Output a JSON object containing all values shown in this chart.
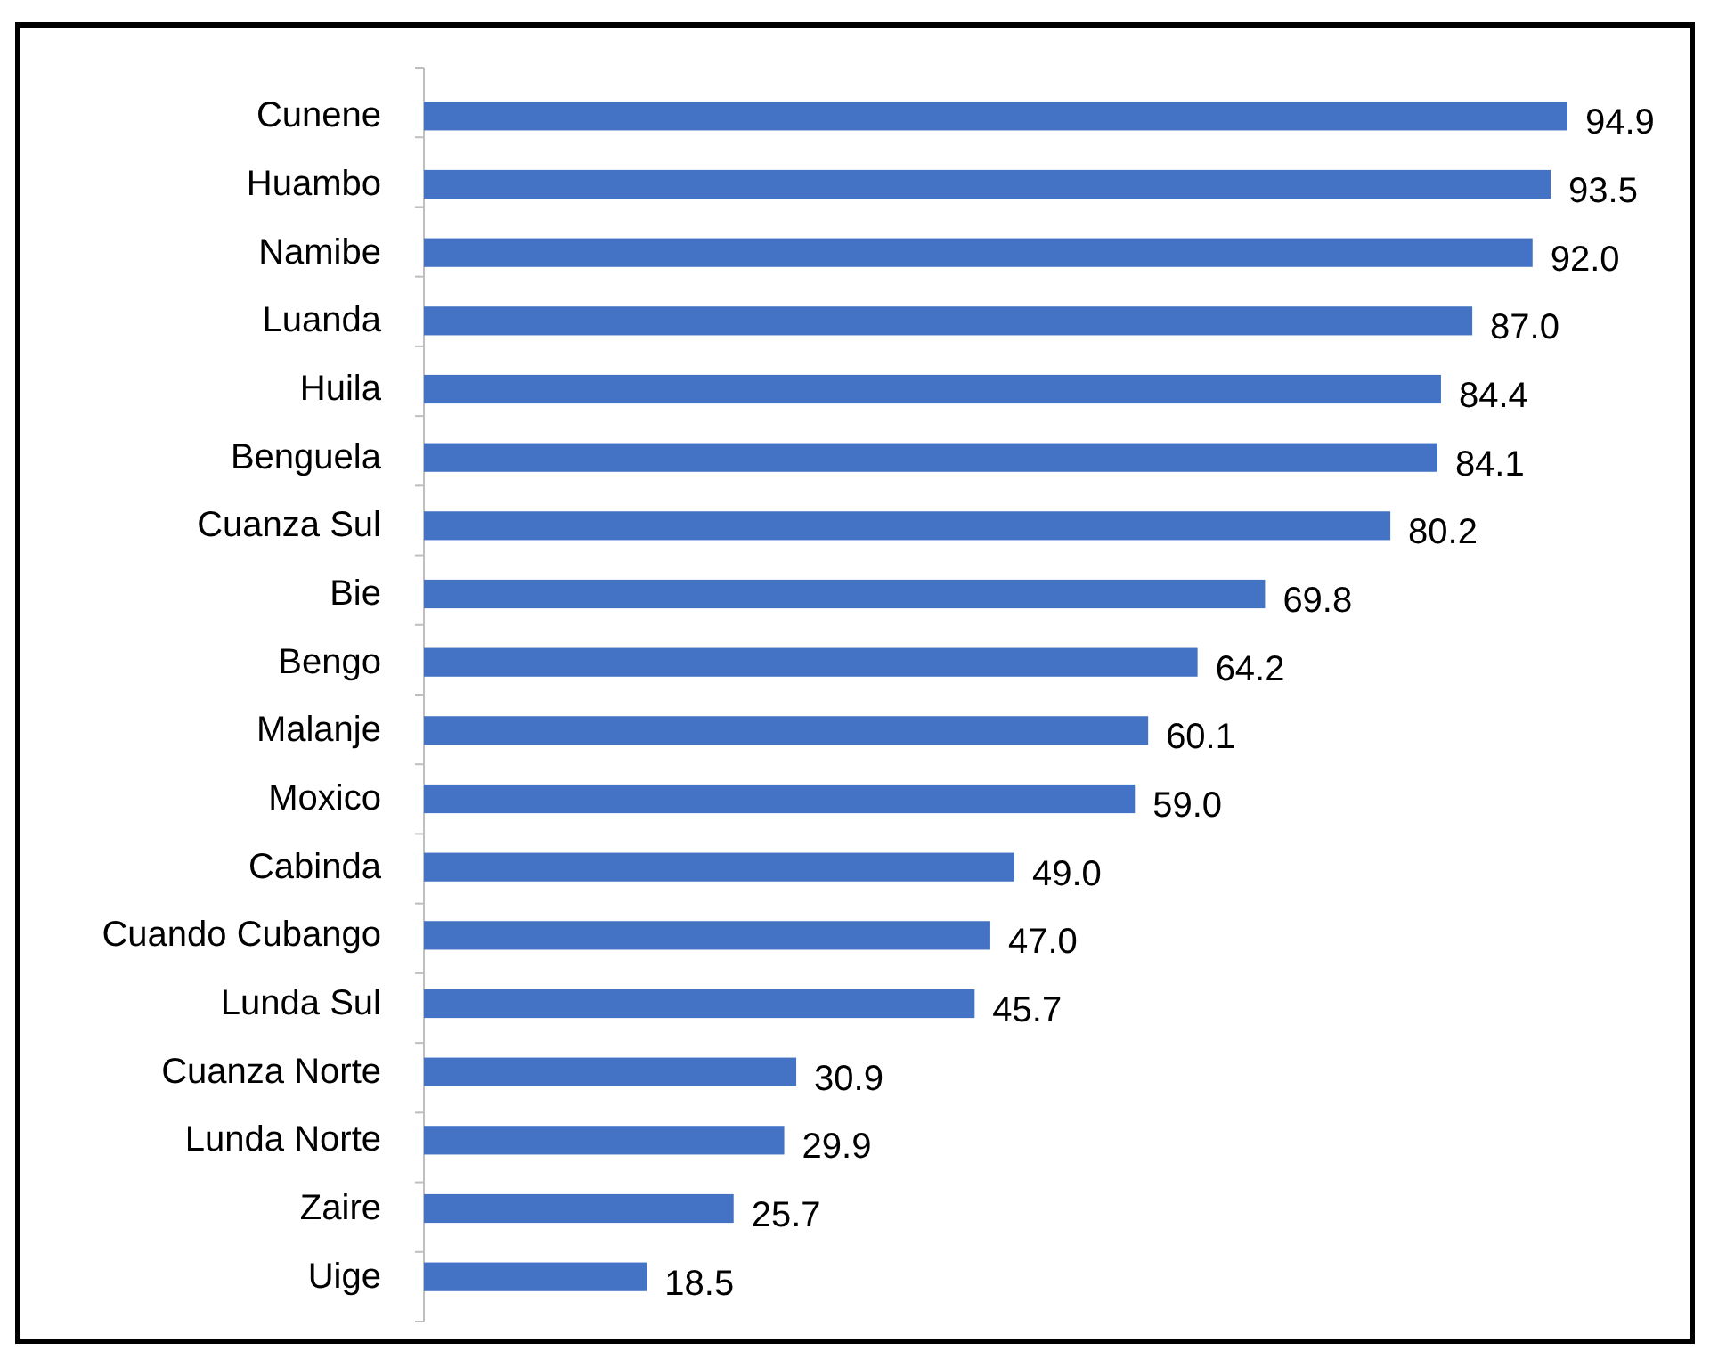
{
  "chart_data": {
    "type": "bar",
    "orientation": "horizontal",
    "value_labels": [
      "94.9",
      "93.5",
      "92.0",
      "87.0",
      "84.4",
      "84.1",
      "80.2",
      "69.8",
      "64.2",
      "60.1",
      "59.0",
      "49.0",
      "47.0",
      "45.7",
      "30.9",
      "29.9",
      "25.7",
      "18.5"
    ],
    "color": "#4472c4",
    "categories": [
      "Cunene",
      "Huambo",
      "Namibe",
      "Luanda",
      "Huila",
      "Benguela",
      "Cuanza Sul",
      "Bie",
      "Bengo",
      "Malanje",
      "Moxico",
      "Cabinda",
      "Cuando Cubango",
      "Lunda Sul",
      "Cuanza Norte",
      "Lunda Norte",
      "Zaire",
      "Uige"
    ],
    "values": [
      94.9,
      93.5,
      92.0,
      87.0,
      84.4,
      84.1,
      80.2,
      69.8,
      64.2,
      60.1,
      59.0,
      49.0,
      47.0,
      45.7,
      30.9,
      29.9,
      25.7,
      18.5
    ]
  }
}
